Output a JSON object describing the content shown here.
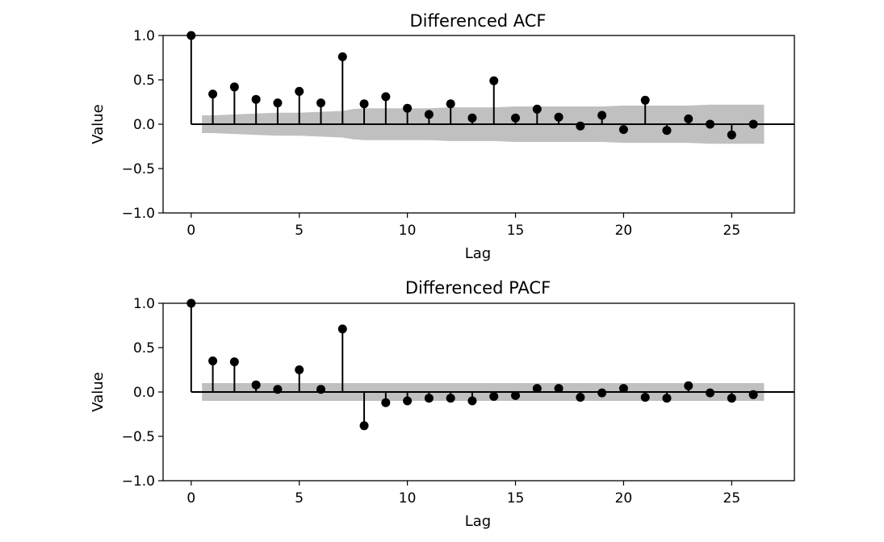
{
  "chart_data": [
    {
      "type": "stem",
      "title": "Differenced ACF",
      "xlabel": "Lag",
      "ylabel": "Value",
      "xlim": [
        -1.3,
        27.9
      ],
      "ylim": [
        -1.0,
        1.0
      ],
      "xticks": [
        "0",
        "5",
        "10",
        "15",
        "20",
        "25"
      ],
      "yticks": [
        "1.0",
        "0.5",
        "0.0",
        "−0.5",
        "−1.0"
      ],
      "lags": [
        0,
        1,
        2,
        3,
        4,
        5,
        6,
        7,
        8,
        9,
        10,
        11,
        12,
        13,
        14,
        15,
        16,
        17,
        18,
        19,
        20,
        21,
        22,
        23,
        24,
        25,
        26
      ],
      "values": [
        1.0,
        0.34,
        0.42,
        0.28,
        0.24,
        0.37,
        0.24,
        0.76,
        0.23,
        0.31,
        0.18,
        0.11,
        0.23,
        0.07,
        0.49,
        0.07,
        0.17,
        0.08,
        -0.02,
        0.1,
        -0.06,
        0.27,
        -0.07,
        0.06,
        0.0,
        -0.12,
        0.0
      ],
      "confidence_band": {
        "lags": [
          0.5,
          1,
          2,
          3,
          4,
          5,
          6,
          7,
          7.5,
          8,
          9,
          10,
          11,
          12,
          13,
          14,
          15,
          16,
          17,
          18,
          19,
          20,
          21,
          22,
          23,
          24,
          25,
          26,
          26.5
        ],
        "upper": [
          0.1,
          0.1,
          0.11,
          0.12,
          0.13,
          0.13,
          0.14,
          0.15,
          0.17,
          0.18,
          0.18,
          0.18,
          0.18,
          0.19,
          0.19,
          0.19,
          0.2,
          0.2,
          0.2,
          0.2,
          0.2,
          0.21,
          0.21,
          0.21,
          0.21,
          0.22,
          0.22,
          0.22,
          0.22
        ],
        "lower": [
          -0.1,
          -0.1,
          -0.11,
          -0.12,
          -0.13,
          -0.13,
          -0.14,
          -0.15,
          -0.17,
          -0.18,
          -0.18,
          -0.18,
          -0.18,
          -0.19,
          -0.19,
          -0.19,
          -0.2,
          -0.2,
          -0.2,
          -0.2,
          -0.2,
          -0.21,
          -0.21,
          -0.21,
          -0.21,
          -0.22,
          -0.22,
          -0.22,
          -0.22
        ]
      },
      "colors": {
        "stem": "#000000",
        "band": "#c0c0c0"
      }
    },
    {
      "type": "stem",
      "title": "Differenced PACF",
      "xlabel": "Lag",
      "ylabel": "Value",
      "xlim": [
        -1.3,
        27.9
      ],
      "ylim": [
        -1.0,
        1.0
      ],
      "xticks": [
        "0",
        "5",
        "10",
        "15",
        "20",
        "25"
      ],
      "yticks": [
        "1.0",
        "0.5",
        "0.0",
        "−0.5",
        "−1.0"
      ],
      "lags": [
        0,
        1,
        2,
        3,
        4,
        5,
        6,
        7,
        8,
        9,
        10,
        11,
        12,
        13,
        14,
        15,
        16,
        17,
        18,
        19,
        20,
        21,
        22,
        23,
        24,
        25,
        26
      ],
      "values": [
        1.0,
        0.35,
        0.34,
        0.08,
        0.03,
        0.25,
        0.03,
        0.71,
        -0.38,
        -0.12,
        -0.1,
        -0.07,
        -0.07,
        -0.1,
        -0.05,
        -0.04,
        0.04,
        0.04,
        -0.06,
        -0.01,
        0.04,
        -0.06,
        -0.07,
        0.07,
        -0.01,
        -0.07,
        -0.03
      ],
      "confidence_band": {
        "lags": [
          0.5,
          26.5
        ],
        "upper": [
          0.1,
          0.1
        ],
        "lower": [
          -0.1,
          -0.1
        ]
      },
      "colors": {
        "stem": "#000000",
        "band": "#c0c0c0"
      }
    }
  ]
}
